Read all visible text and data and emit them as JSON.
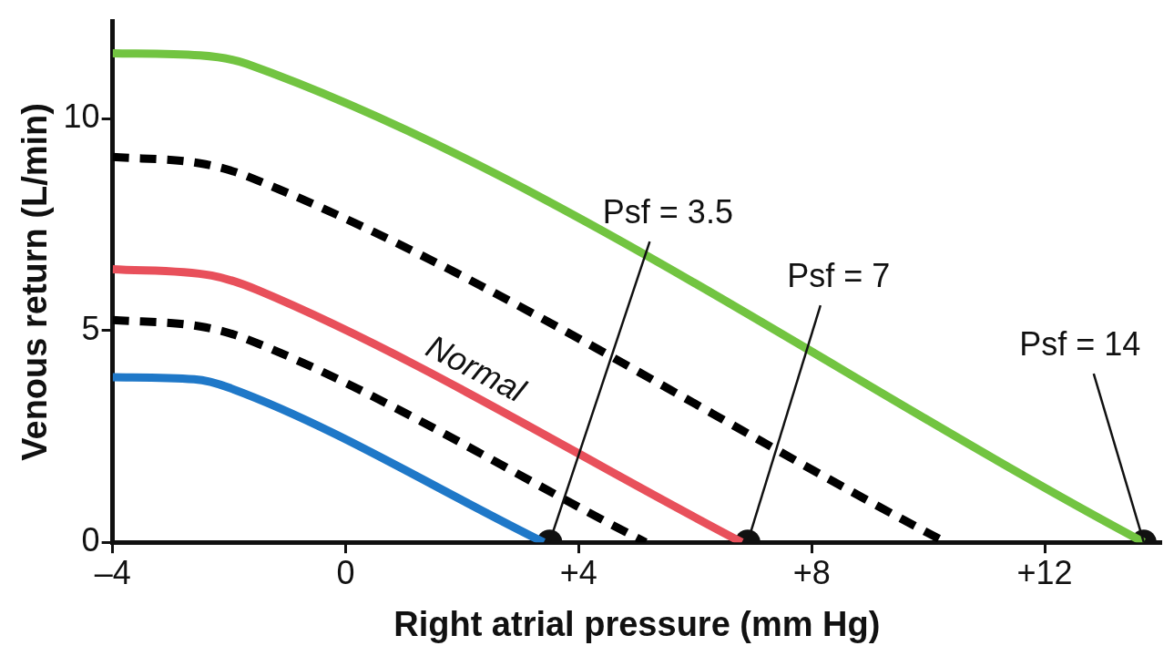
{
  "chart_data": {
    "type": "line",
    "xlabel": "Right atrial pressure (mm Hg)",
    "ylabel": "Venous return (L/min)",
    "xlim": [
      -4,
      14
    ],
    "xticks": [
      {
        "value": -4,
        "label": "–4"
      },
      0,
      {
        "value": 4,
        "label": "+4"
      },
      {
        "value": 8,
        "label": "+8"
      },
      {
        "value": 12,
        "label": "+12"
      }
    ],
    "ylim": [
      0,
      12.3
    ],
    "yticks": [
      0,
      5,
      10
    ],
    "grid": false,
    "legend": false,
    "marker": "none",
    "series": [
      {
        "color": "#72c441",
        "line_style": "solid",
        "x": [
          -4,
          -2.5,
          -1.7,
          13.7
        ],
        "values": [
          11.55,
          11.5,
          11.3,
          0
        ]
      },
      {
        "color": "#000000",
        "line_style": "dashed",
        "x": [
          -4,
          -2.5,
          -1.7,
          10.3
        ],
        "values": [
          9.1,
          8.95,
          8.65,
          0
        ]
      },
      {
        "name": "Normal",
        "color": "#e8505b",
        "line_style": "solid",
        "x": [
          -4,
          -2.3,
          -1.5,
          6.8
        ],
        "values": [
          6.45,
          6.3,
          5.95,
          0
        ]
      },
      {
        "color": "#000000",
        "line_style": "dashed",
        "x": [
          -4,
          -2.5,
          -1.7,
          5.15
        ],
        "values": [
          5.25,
          5.1,
          4.8,
          0
        ]
      },
      {
        "color": "#1f78c8",
        "line_style": "solid",
        "x": [
          -4,
          -2.6,
          -2.0,
          3.4
        ],
        "values": [
          3.9,
          3.85,
          3.65,
          0
        ]
      },
      {
        "type": "scatter",
        "color": "#111111",
        "marker": "circle",
        "x": [
          3.5,
          6.9,
          13.7
        ],
        "values": [
          0,
          0,
          0
        ]
      }
    ],
    "annotations": [
      {
        "text": "Psf = 3.5",
        "x": 3.5,
        "y": 0
      },
      {
        "text": "Psf = 7",
        "x": 6.9,
        "y": 0
      },
      {
        "text": "Psf = 14",
        "x": 13.7,
        "y": 0
      }
    ]
  }
}
